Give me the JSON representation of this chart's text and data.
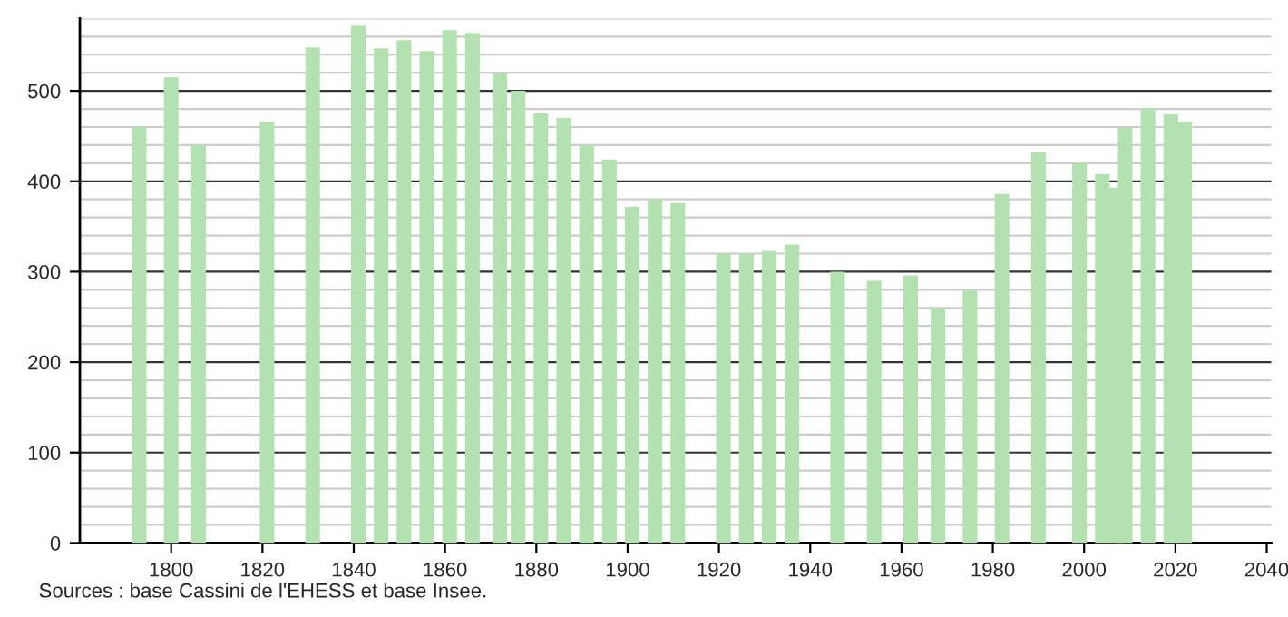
{
  "chart_data": {
    "type": "bar",
    "x": [
      1793,
      1800,
      1806,
      1821,
      1831,
      1841,
      1846,
      1851,
      1856,
      1861,
      1866,
      1872,
      1876,
      1881,
      1886,
      1891,
      1896,
      1901,
      1906,
      1911,
      1921,
      1926,
      1931,
      1936,
      1946,
      1954,
      1962,
      1968,
      1975,
      1982,
      1990,
      1999,
      2004,
      2007,
      2009,
      2014,
      2019,
      2022
    ],
    "values": [
      460,
      515,
      440,
      466,
      548,
      572,
      547,
      556,
      544,
      567,
      564,
      520,
      500,
      475,
      470,
      440,
      424,
      372,
      380,
      376,
      320,
      320,
      323,
      330,
      300,
      290,
      296,
      259,
      279,
      386,
      432,
      420,
      408,
      393,
      459,
      481,
      474,
      466
    ],
    "color": "#b2e2b0",
    "xlim": [
      1780,
      2041
    ],
    "xticks": [
      1800,
      1820,
      1840,
      1860,
      1880,
      1900,
      1920,
      1940,
      1960,
      1980,
      2000,
      2020,
      2040
    ],
    "ylim": [
      0,
      580
    ],
    "yticks": [
      0,
      100,
      200,
      300,
      400,
      500
    ],
    "grid": "y",
    "annotations": [
      "Sources : base Cassini de l'EHESS et base Insee."
    ]
  }
}
